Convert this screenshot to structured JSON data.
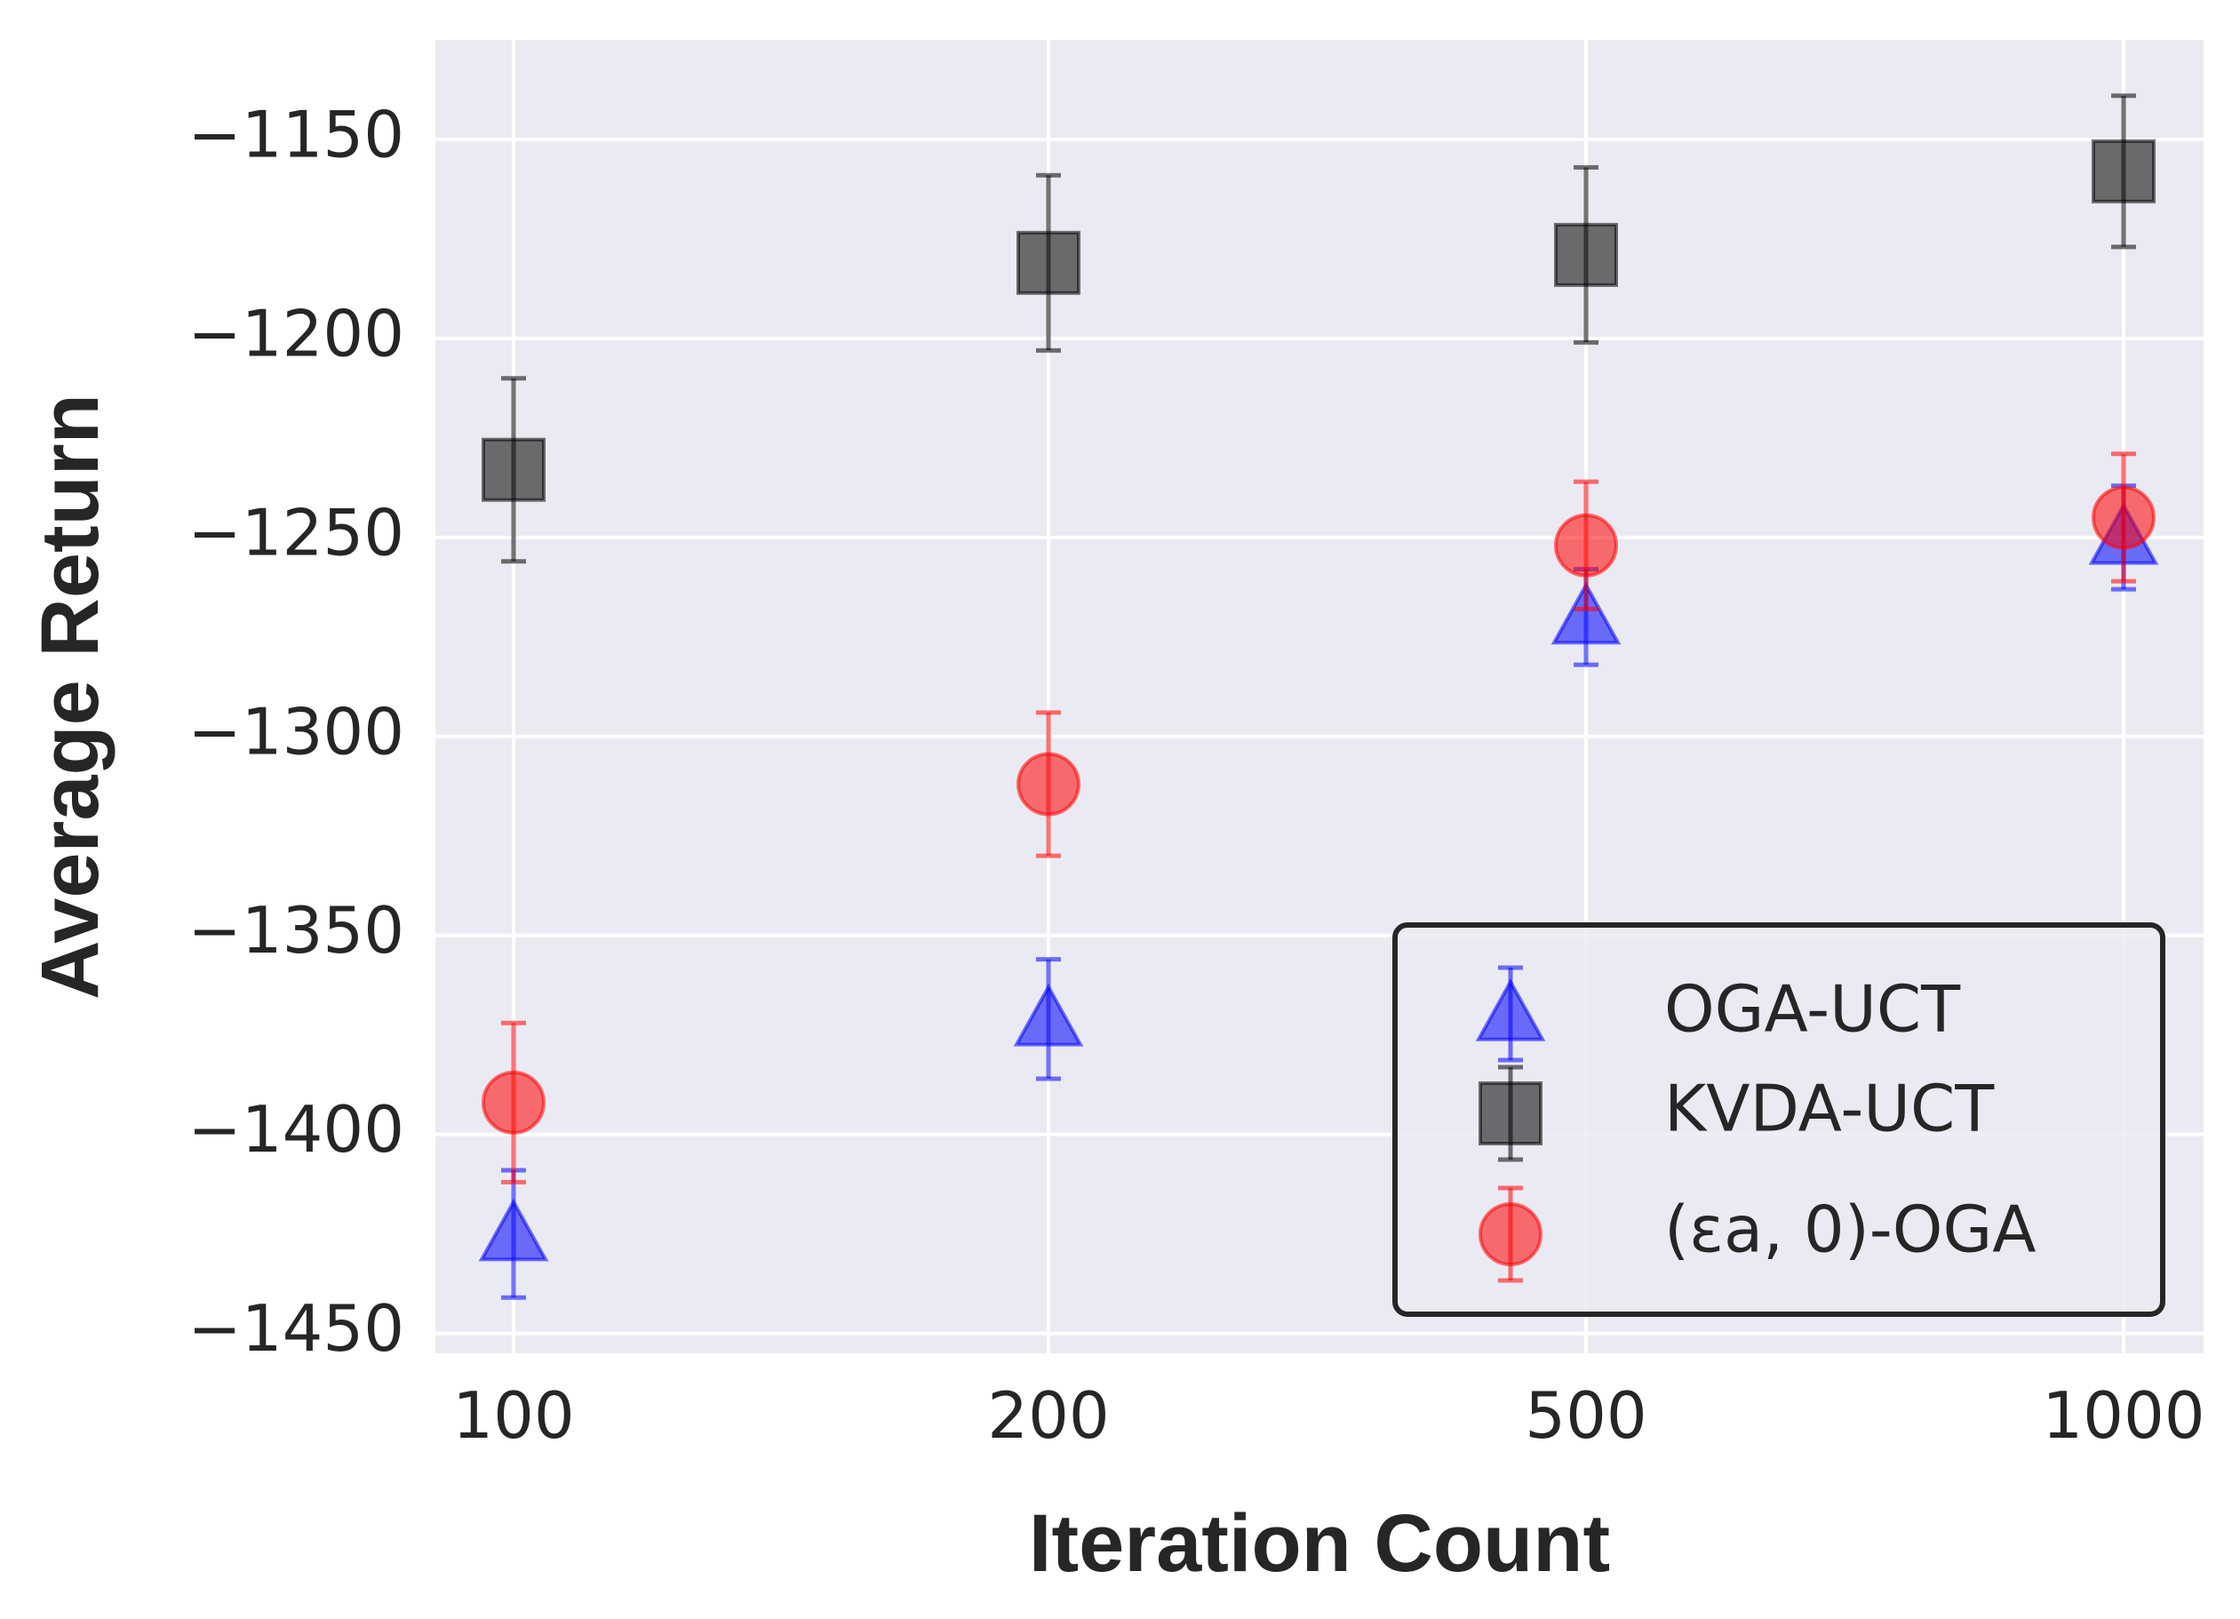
{
  "chart_data": {
    "type": "scatter",
    "title": "",
    "xlabel": "Iteration Count",
    "ylabel": "Average Return",
    "categories": [
      "100",
      "200",
      "500",
      "1000"
    ],
    "ylim": [
      -1455,
      -1125
    ],
    "yticks": [
      -1150,
      -1200,
      -1250,
      -1300,
      -1350,
      -1400,
      -1450
    ],
    "ytick_labels": [
      "−1150",
      "−1200",
      "−1250",
      "−1300",
      "−1350",
      "−1400",
      "−1450"
    ],
    "grid": true,
    "legend_position": "lower-right",
    "series": [
      {
        "name": "OGA-UCT",
        "marker": "triangle",
        "color": "#0000ff",
        "values": [
          -1425,
          -1371,
          -1270,
          -1250
        ],
        "err": [
          16,
          15,
          12,
          13
        ]
      },
      {
        "name": "KVDA-UCT",
        "marker": "square",
        "color": "#000000",
        "values": [
          -1233,
          -1181,
          -1179,
          -1158
        ],
        "err": [
          23,
          22,
          22,
          19
        ]
      },
      {
        "name": "(εa, 0)-OGA",
        "marker": "circle",
        "color": "#ff0000",
        "values": [
          -1392,
          -1312,
          -1252,
          -1245
        ],
        "err": [
          20,
          18,
          16,
          16
        ]
      }
    ]
  }
}
